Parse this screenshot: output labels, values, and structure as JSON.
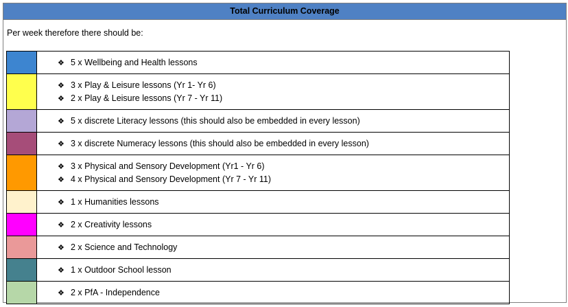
{
  "header": {
    "title": "Total Curriculum Coverage"
  },
  "intro": "Per week therefore there should be:",
  "rows": [
    {
      "color": "#3d85d0",
      "items": [
        "5 x Wellbeing and Health lessons"
      ]
    },
    {
      "color": "#ffff4d",
      "items": [
        "3 x Play & Leisure lessons (Yr 1- Yr 6)",
        "2 x Play & Leisure lessons (Yr 7 - Yr 11)"
      ]
    },
    {
      "color": "#b4a7d6",
      "items": [
        "5 x discrete Literacy lessons (this should also be embedded in every lesson)"
      ]
    },
    {
      "color": "#a64d79",
      "items": [
        "3 x discrete Numeracy lessons (this should also be embedded in every lesson)"
      ]
    },
    {
      "color": "#ff9900",
      "items": [
        "3 x Physical and Sensory Development (Yr1 - Yr 6)",
        "4 x Physical and Sensory Development (Yr 7 - Yr 11)"
      ]
    },
    {
      "color": "#fff2cc",
      "items": [
        "1 x Humanities lessons"
      ]
    },
    {
      "color": "#ff00ff",
      "items": [
        "2 x Creativity lessons"
      ]
    },
    {
      "color": "#ea9999",
      "items": [
        "2 x Science and Technology"
      ]
    },
    {
      "color": "#45818e",
      "items": [
        "1 x Outdoor School lesson"
      ]
    },
    {
      "color": "#b6d7a8",
      "items": [
        "2 x PfA - Independence"
      ]
    }
  ]
}
